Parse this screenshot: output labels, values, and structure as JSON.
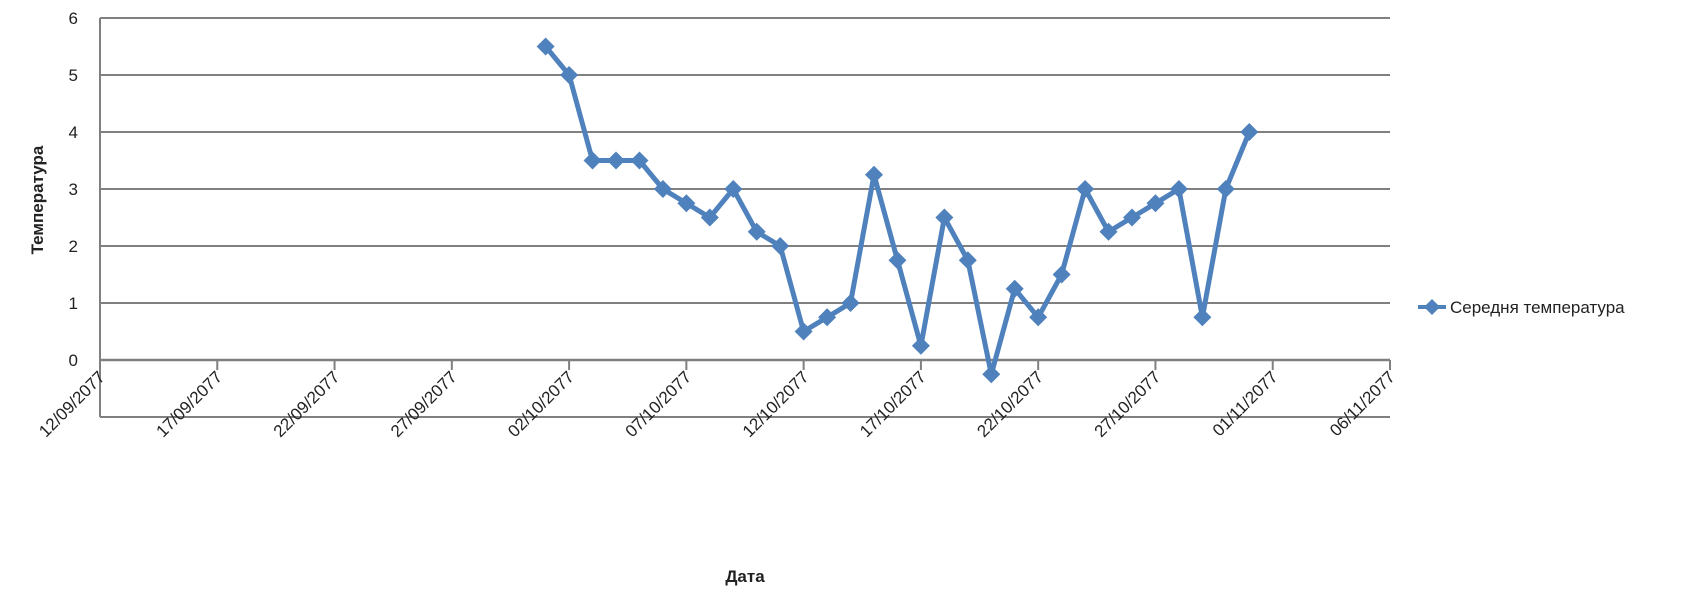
{
  "chart_data": {
    "type": "line",
    "title": "",
    "xlabel": "Дата",
    "ylabel": "Температура",
    "x_ticks": [
      "12/09/2077",
      "17/09/2077",
      "22/09/2077",
      "27/09/2077",
      "02/10/2077",
      "07/10/2077",
      "12/10/2077",
      "17/10/2077",
      "22/10/2077",
      "27/10/2077",
      "01/11/2077",
      "06/11/2077"
    ],
    "y_ticks": [
      "0",
      "1",
      "2",
      "3",
      "4",
      "5",
      "6"
    ],
    "xlim": [
      "2077-09-12",
      "2077-11-06"
    ],
    "ylim": [
      -1,
      6
    ],
    "grid": true,
    "legend": "right",
    "series": [
      {
        "name": "Середня температура",
        "color": "#4F81BD",
        "marker": "diamond",
        "points": [
          {
            "x": "2077-10-01",
            "y": 5.5
          },
          {
            "x": "2077-10-02",
            "y": 5.0
          },
          {
            "x": "2077-10-03",
            "y": 3.5
          },
          {
            "x": "2077-10-04",
            "y": 3.5
          },
          {
            "x": "2077-10-05",
            "y": 3.5
          },
          {
            "x": "2077-10-06",
            "y": 3.0
          },
          {
            "x": "2077-10-07",
            "y": 2.75
          },
          {
            "x": "2077-10-08",
            "y": 2.5
          },
          {
            "x": "2077-10-09",
            "y": 3.0
          },
          {
            "x": "2077-10-10",
            "y": 2.25
          },
          {
            "x": "2077-10-11",
            "y": 2.0
          },
          {
            "x": "2077-10-12",
            "y": 0.5
          },
          {
            "x": "2077-10-13",
            "y": 0.75
          },
          {
            "x": "2077-10-14",
            "y": 1.0
          },
          {
            "x": "2077-10-15",
            "y": 3.25
          },
          {
            "x": "2077-10-16",
            "y": 1.75
          },
          {
            "x": "2077-10-17",
            "y": 0.25
          },
          {
            "x": "2077-10-18",
            "y": 2.5
          },
          {
            "x": "2077-10-19",
            "y": 1.75
          },
          {
            "x": "2077-10-20",
            "y": -0.25
          },
          {
            "x": "2077-10-21",
            "y": 1.25
          },
          {
            "x": "2077-10-22",
            "y": 0.75
          },
          {
            "x": "2077-10-23",
            "y": 1.5
          },
          {
            "x": "2077-10-24",
            "y": 3.0
          },
          {
            "x": "2077-10-25",
            "y": 2.25
          },
          {
            "x": "2077-10-26",
            "y": 2.5
          },
          {
            "x": "2077-10-27",
            "y": 2.75
          },
          {
            "x": "2077-10-28",
            "y": 3.0
          },
          {
            "x": "2077-10-29",
            "y": 0.75
          },
          {
            "x": "2077-10-30",
            "y": 3.0
          },
          {
            "x": "2077-10-31",
            "y": 4.0
          }
        ]
      }
    ]
  }
}
